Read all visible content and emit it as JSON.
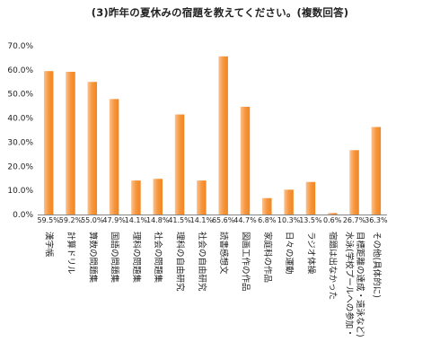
{
  "chart_data": {
    "type": "bar",
    "title": "(3)昨年の夏休みの宿題を教えてください。(複数回答)",
    "xlabel": "",
    "ylabel": "",
    "ylim": [
      0,
      70
    ],
    "y_ticks": [
      "0.0%",
      "10.0%",
      "20.0%",
      "30.0%",
      "40.0%",
      "50.0%",
      "60.0%",
      "70.0%"
    ],
    "grid": false,
    "legend": "none",
    "bar_color_top": "#fbc28e",
    "bar_color_mid": "#f7963f",
    "bar_color_bottom": "#f0861e",
    "categories": [
      [
        "漢字帳"
      ],
      [
        "計算ドリル"
      ],
      [
        "算数の問題集"
      ],
      [
        "国語の問題集"
      ],
      [
        "理科の問題集"
      ],
      [
        "社会の問題集"
      ],
      [
        "理科の自由研究"
      ],
      [
        "社会の自由研究"
      ],
      [
        "読書感想文"
      ],
      [
        "図画工作の作品"
      ],
      [
        "家庭科の作品"
      ],
      [
        "日々の運動"
      ],
      [
        "ラジオ体操"
      ],
      [
        "宿題は出なかった"
      ],
      [
        "水泳(学校プールへの参加・",
        "目標距離の達成・遠泳など)"
      ],
      [
        "その他(具体的に)"
      ]
    ],
    "values": [
      59.5,
      59.2,
      55.0,
      47.9,
      14.1,
      14.8,
      41.5,
      14.1,
      65.6,
      44.7,
      6.8,
      10.3,
      13.5,
      0.6,
      26.7,
      36.3
    ],
    "value_labels": [
      "59.5%",
      "59.2%",
      "55.0%",
      "47.9%",
      "14.1%",
      "14.8%",
      "41.5%",
      "14.1%",
      "65.6%",
      "44.7%",
      "6.8%",
      "10.3%",
      "13.5%",
      "0.6%",
      "26.7%",
      "36.3%"
    ]
  }
}
